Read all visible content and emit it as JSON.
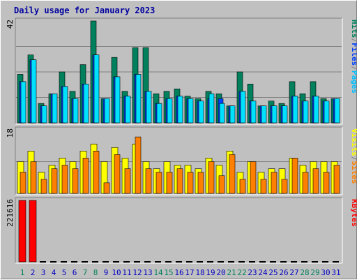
{
  "chart_data": [
    {
      "type": "bar",
      "title": "Daily usage for January 2023",
      "ylabel_max": "42",
      "legend": [
        {
          "label": "Hits",
          "color": "#00805c"
        },
        {
          "label": "/",
          "color": "#808080"
        },
        {
          "label": "Files",
          "color": "#0040ff"
        },
        {
          "label": "/",
          "color": "#808080"
        },
        {
          "label": "Pages",
          "color": "#00c0ff"
        }
      ],
      "ylim": [
        0,
        42
      ],
      "categories": [
        "1",
        "2",
        "3",
        "4",
        "5",
        "6",
        "7",
        "8",
        "9",
        "10",
        "11",
        "12",
        "13",
        "14",
        "15",
        "16",
        "17",
        "18",
        "19",
        "20",
        "21",
        "22",
        "23",
        "24",
        "25",
        "26",
        "27",
        "28",
        "29",
        "30",
        "31"
      ],
      "series": [
        {
          "name": "Hits",
          "color": "#00805c",
          "values": [
            20,
            28,
            8,
            12,
            21,
            13,
            24,
            42,
            10,
            27,
            13,
            31,
            31,
            12,
            13,
            14,
            11,
            10,
            13,
            12,
            7,
            21,
            16,
            7,
            9,
            8,
            17,
            12,
            17,
            10,
            10
          ]
        },
        {
          "name": "Files",
          "color": "#0040ff",
          "values": [
            17,
            26,
            7,
            12,
            15,
            10,
            16,
            28,
            10,
            19,
            11,
            20,
            13,
            8,
            10,
            11,
            10,
            9,
            10,
            10,
            7,
            13,
            9,
            7,
            7,
            7,
            11,
            9,
            11,
            9,
            10
          ]
        },
        {
          "name": "Pages",
          "color": "#00e0ff",
          "values": [
            17,
            26,
            7,
            12,
            15,
            10,
            16,
            28,
            10,
            19,
            11,
            20,
            13,
            8,
            10,
            11,
            10,
            9,
            12,
            8,
            7,
            13,
            9,
            7,
            7,
            7,
            11,
            9,
            11,
            9,
            10
          ]
        }
      ]
    },
    {
      "type": "bar",
      "ylabel_max": "18",
      "legend": [
        {
          "label": "Visits",
          "color": "#ffff00"
        },
        {
          "label": "/",
          "color": "#808080"
        },
        {
          "label": "Sites",
          "color": "#ff8000"
        }
      ],
      "ylim": [
        0,
        18
      ],
      "categories": [
        "1",
        "2",
        "3",
        "4",
        "5",
        "6",
        "7",
        "8",
        "9",
        "10",
        "11",
        "12",
        "13",
        "14",
        "15",
        "16",
        "17",
        "18",
        "19",
        "20",
        "21",
        "22",
        "23",
        "24",
        "25",
        "26",
        "27",
        "28",
        "29",
        "30",
        "31"
      ],
      "series": [
        {
          "name": "Visits",
          "color": "#ffff00",
          "values": [
            9,
            12,
            6,
            8,
            10,
            9,
            12,
            14,
            9,
            13,
            10,
            14,
            9,
            7,
            9,
            8,
            8,
            7,
            10,
            8,
            12,
            6,
            9,
            6,
            7,
            7,
            10,
            8,
            9,
            9,
            9
          ]
        },
        {
          "name": "Sites",
          "color": "#ff8000",
          "values": [
            6,
            9,
            4,
            7,
            8,
            7,
            10,
            12,
            3,
            11,
            7,
            16,
            7,
            6,
            6,
            7,
            6,
            6,
            9,
            5,
            11,
            4,
            9,
            4,
            6,
            4,
            10,
            6,
            7,
            6,
            8
          ]
        }
      ]
    },
    {
      "type": "bar",
      "ylabel_max": "221616",
      "legend": [
        {
          "label": "KBytes",
          "color": "#ff0000"
        }
      ],
      "ylim": [
        0,
        221616
      ],
      "categories": [
        "1",
        "2",
        "3",
        "4",
        "5",
        "6",
        "7",
        "8",
        "9",
        "10",
        "11",
        "12",
        "13",
        "14",
        "15",
        "16",
        "17",
        "18",
        "19",
        "20",
        "21",
        "22",
        "23",
        "24",
        "25",
        "26",
        "27",
        "28",
        "29",
        "30",
        "31"
      ],
      "series": [
        {
          "name": "KBytes",
          "color": "#ff0000",
          "values": [
            221616,
            221616,
            0,
            0,
            0,
            0,
            0,
            0,
            0,
            0,
            0,
            0,
            0,
            0,
            0,
            0,
            0,
            0,
            0,
            0,
            0,
            0,
            0,
            0,
            0,
            0,
            0,
            0,
            0,
            0,
            0
          ]
        }
      ]
    }
  ],
  "x_labels": [
    "1",
    "2",
    "3",
    "4",
    "5",
    "6",
    "7",
    "8",
    "9",
    "10",
    "11",
    "12",
    "13",
    "14",
    "15",
    "16",
    "17",
    "18",
    "19",
    "20",
    "21",
    "22",
    "23",
    "24",
    "25",
    "26",
    "27",
    "28",
    "29",
    "30",
    "31"
  ],
  "weekend_days": [
    1,
    7,
    8,
    14,
    15,
    21,
    22,
    28,
    29
  ],
  "colors": {
    "weekday_label": "#0000c0",
    "weekend_label": "#00805c",
    "grid": "#808080",
    "panel_bg": "#c0c0c0"
  }
}
